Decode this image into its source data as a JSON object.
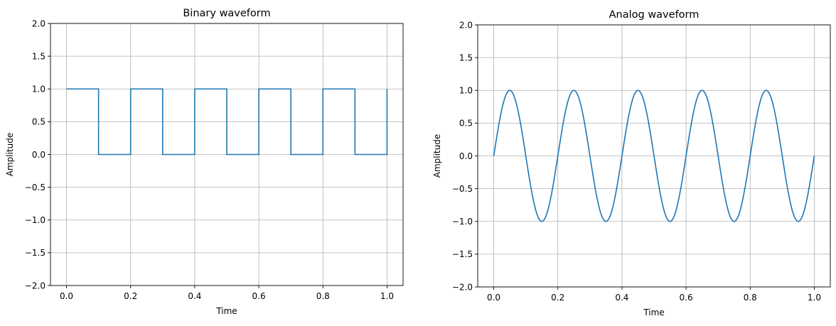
{
  "figure": {
    "background": "#ffffff",
    "line_color": "#1f77b4",
    "grid_color": "#b0b0b0"
  },
  "chart_data": [
    {
      "type": "line",
      "title": "Binary waveform",
      "xlabel": "Time",
      "ylabel": "Amplitude",
      "xlim": [
        -0.05,
        1.05
      ],
      "ylim": [
        -2.0,
        2.0
      ],
      "grid": true,
      "x_ticks": [
        "0.0",
        "0.2",
        "0.4",
        "0.6",
        "0.8",
        "1.0"
      ],
      "x_tick_values": [
        0.0,
        0.2,
        0.4,
        0.6,
        0.8,
        1.0
      ],
      "y_ticks": [
        "2.0",
        "1.5",
        "1.0",
        "0.5",
        "0.0",
        "−0.5",
        "−1.0",
        "−1.5",
        "−2.0"
      ],
      "y_tick_values": [
        2.0,
        1.5,
        1.0,
        0.5,
        0.0,
        -0.5,
        -1.0,
        -1.5,
        -2.0
      ],
      "series": [
        {
          "name": "binary",
          "description": "Square wave, 5 Hz, 50% duty cycle, levels 0 and 1",
          "x": [
            0.0,
            0.1,
            0.1,
            0.2,
            0.2,
            0.3,
            0.3,
            0.4,
            0.4,
            0.5,
            0.5,
            0.6,
            0.6,
            0.7,
            0.7,
            0.8,
            0.8,
            0.9,
            0.9,
            1.0,
            1.0
          ],
          "y": [
            1,
            1,
            0,
            0,
            1,
            1,
            0,
            0,
            1,
            1,
            0,
            0,
            1,
            1,
            0,
            0,
            1,
            1,
            0,
            0,
            1
          ]
        }
      ]
    },
    {
      "type": "line",
      "title": "Analog waveform",
      "xlabel": "Time",
      "ylabel": "Amplitude",
      "xlim": [
        -0.05,
        1.05
      ],
      "ylim": [
        -2.0,
        2.0
      ],
      "grid": true,
      "x_ticks": [
        "0.0",
        "0.2",
        "0.4",
        "0.6",
        "0.8",
        "1.0"
      ],
      "x_tick_values": [
        0.0,
        0.2,
        0.4,
        0.6,
        0.8,
        1.0
      ],
      "y_ticks": [
        "2.0",
        "1.5",
        "1.0",
        "0.5",
        "0.0",
        "−0.5",
        "−1.0",
        "−1.5",
        "−2.0"
      ],
      "y_tick_values": [
        2.0,
        1.5,
        1.0,
        0.5,
        0.0,
        -0.5,
        -1.0,
        -1.5,
        -2.0
      ],
      "series": [
        {
          "name": "analog",
          "description": "Sine wave y = sin(2*pi*5*t), amplitude 1, 5 cycles over [0,1]",
          "frequency_hz": 5,
          "amplitude": 1,
          "x": [
            0.0,
            0.05,
            0.1,
            0.15,
            0.2,
            0.25,
            0.3,
            0.35,
            0.4,
            0.45,
            0.5,
            0.55,
            0.6,
            0.65,
            0.7,
            0.75,
            0.8,
            0.85,
            0.9,
            0.95,
            1.0
          ],
          "y": [
            0,
            1,
            0,
            -1,
            0,
            1,
            0,
            -1,
            0,
            1,
            0,
            -1,
            0,
            1,
            0,
            -1,
            0,
            1,
            0,
            -1,
            0
          ]
        }
      ]
    }
  ]
}
